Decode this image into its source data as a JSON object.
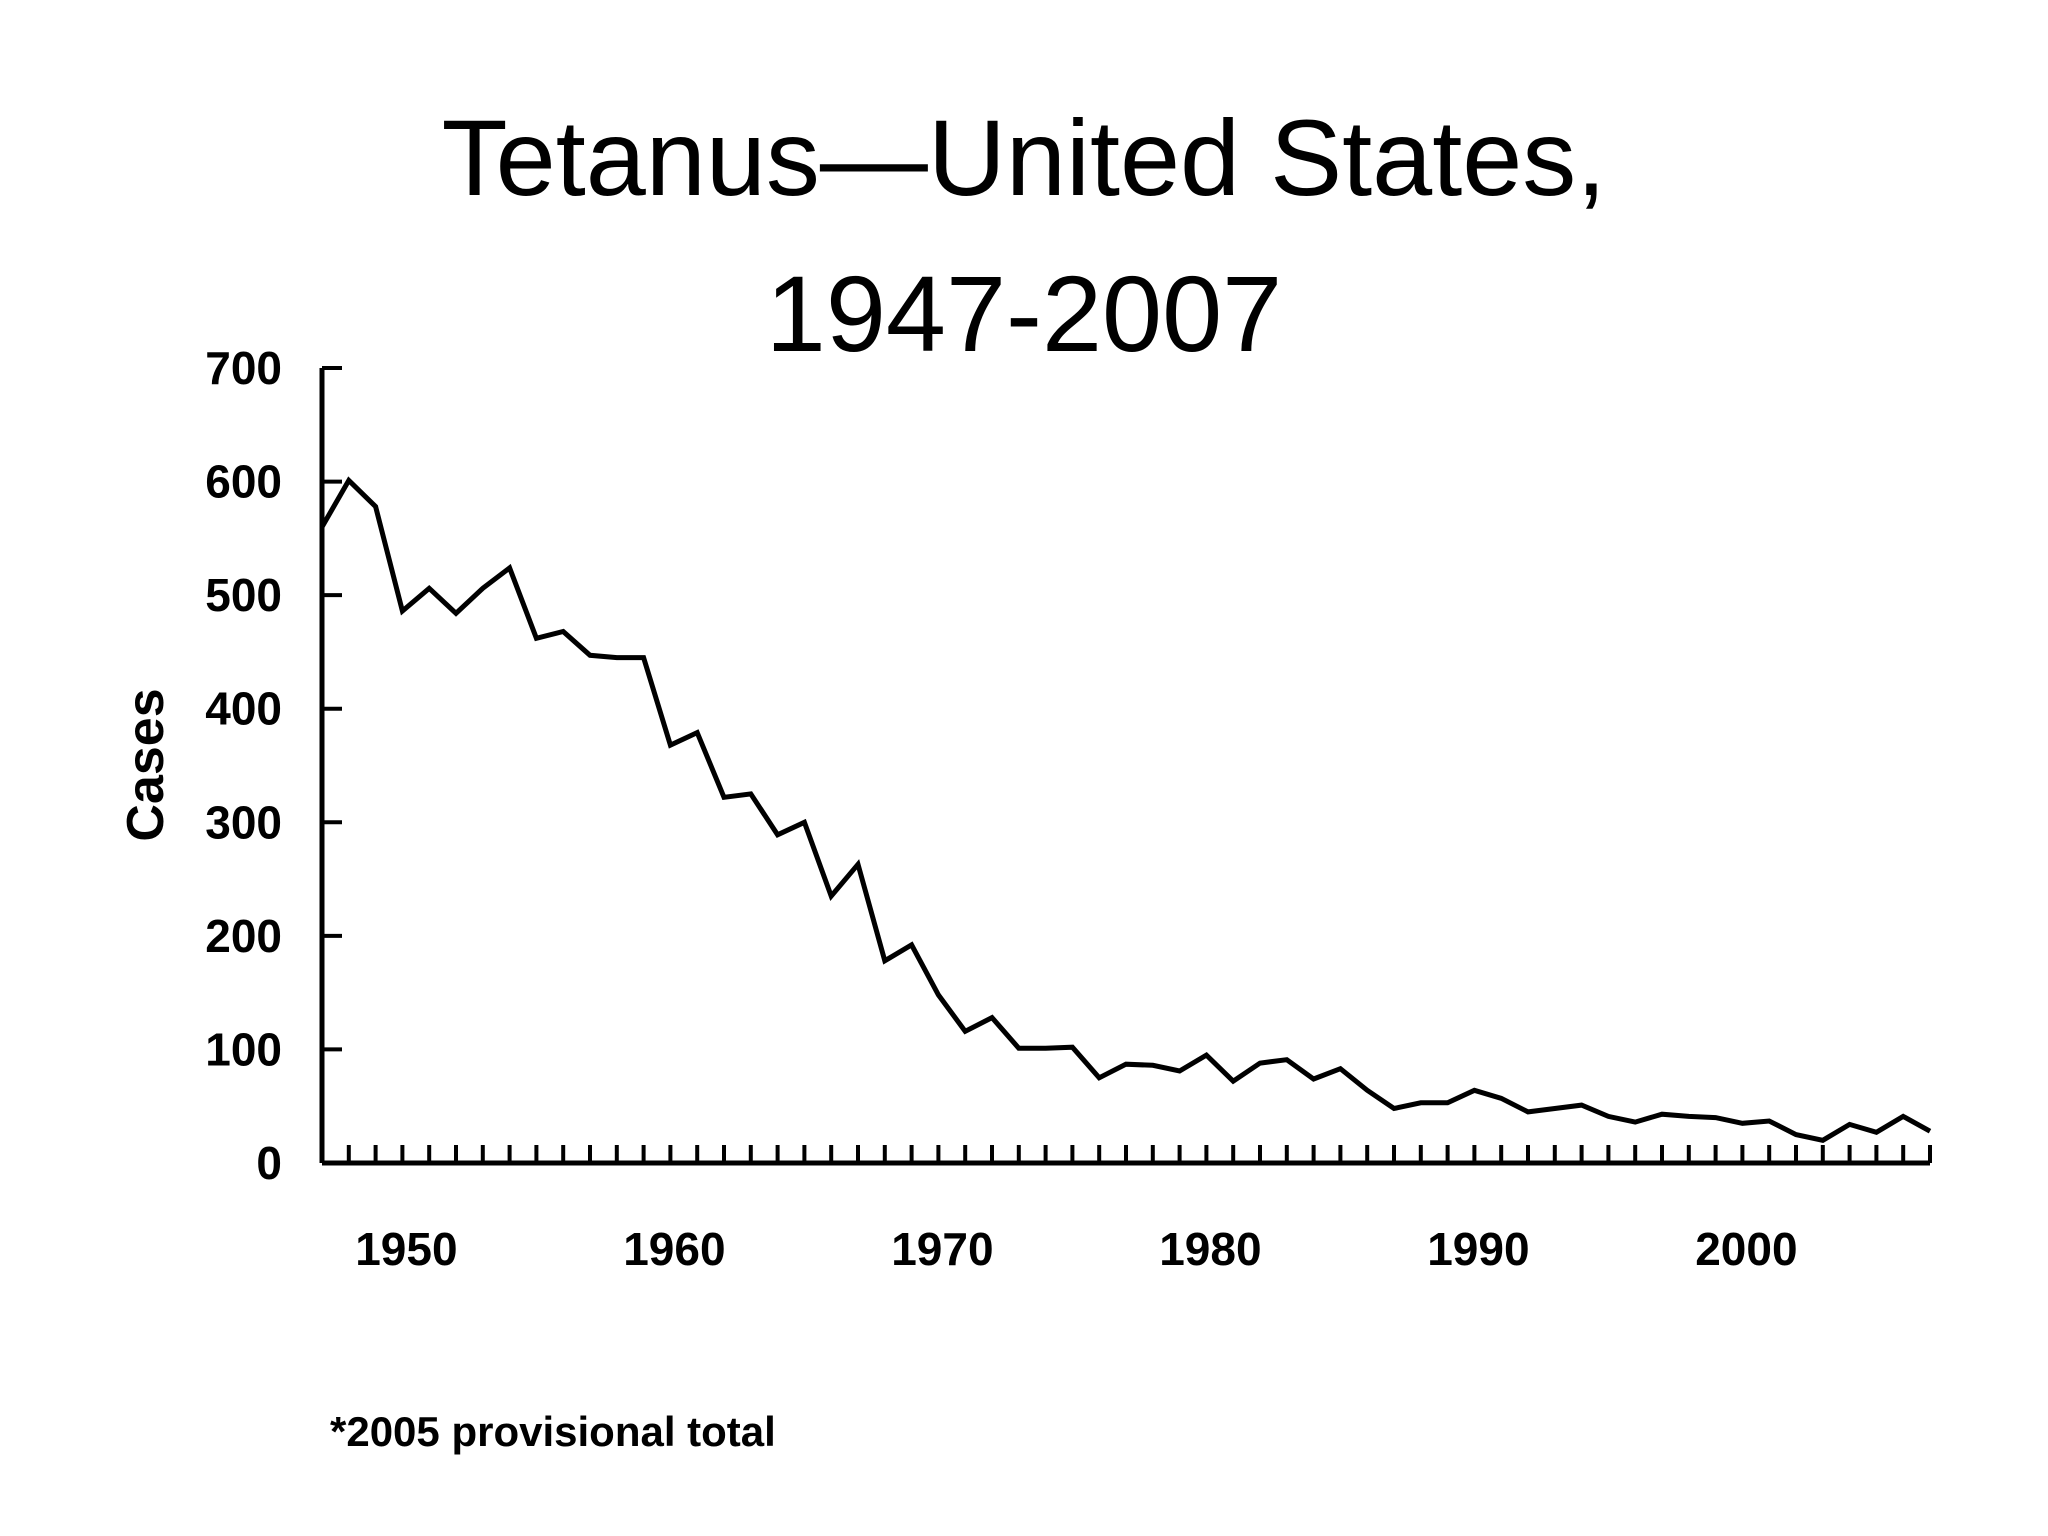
{
  "chart_data": {
    "type": "line",
    "title_line1": "Tetanus—United States,",
    "title_line2": "1947-2007",
    "ylabel": "Cases",
    "xlabel": "",
    "ylim": [
      0,
      700
    ],
    "xlim": [
      1947,
      2007
    ],
    "yticks": [
      0,
      100,
      200,
      300,
      400,
      500,
      600,
      700
    ],
    "xtick_labels": [
      1950,
      1960,
      1970,
      1980,
      1990,
      2000
    ],
    "footnote": "*2005 provisional total",
    "line_color": "#000000",
    "grid": false,
    "x": [
      1947,
      1948,
      1949,
      1950,
      1951,
      1952,
      1953,
      1954,
      1955,
      1956,
      1957,
      1958,
      1959,
      1960,
      1961,
      1962,
      1963,
      1964,
      1965,
      1966,
      1967,
      1968,
      1969,
      1970,
      1971,
      1972,
      1973,
      1974,
      1975,
      1976,
      1977,
      1978,
      1979,
      1980,
      1981,
      1982,
      1983,
      1984,
      1985,
      1986,
      1987,
      1988,
      1989,
      1990,
      1991,
      1992,
      1993,
      1994,
      1995,
      1996,
      1997,
      1998,
      1999,
      2000,
      2001,
      2002,
      2003,
      2004,
      2005,
      2006,
      2007
    ],
    "series": [
      {
        "values": [
          560,
          601,
          578,
          486,
          506,
          484,
          506,
          524,
          462,
          468,
          447,
          445,
          445,
          368,
          379,
          322,
          325,
          289,
          300,
          235,
          263,
          178,
          192,
          148,
          116,
          128,
          101,
          101,
          102,
          75,
          87,
          86,
          81,
          95,
          72,
          88,
          91,
          74,
          83,
          64,
          48,
          53,
          53,
          64,
          57,
          45,
          48,
          51,
          41,
          36,
          43,
          41,
          40,
          35,
          37,
          25,
          20,
          34,
          27,
          41,
          28
        ]
      }
    ]
  }
}
